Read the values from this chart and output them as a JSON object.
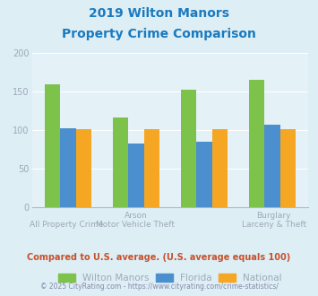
{
  "title_line1": "2019 Wilton Manors",
  "title_line2": "Property Crime Comparison",
  "title_color": "#1a7abf",
  "wilton_manors": [
    160,
    116,
    153,
    166
  ],
  "florida": [
    102,
    83,
    85,
    107
  ],
  "national": [
    101,
    101,
    101,
    101
  ],
  "wilton_color": "#7dc24b",
  "florida_color": "#4c8fce",
  "national_color": "#f5a623",
  "bg_color": "#ddeef5",
  "plot_bg": "#e4f1f7",
  "ylim": [
    0,
    200
  ],
  "yticks": [
    0,
    50,
    100,
    150,
    200
  ],
  "top_labels": [
    "",
    "Arson",
    "",
    "Burglary"
  ],
  "bot_labels": [
    "All Property Crime",
    "Motor Vehicle Theft",
    "",
    "Larceny & Theft"
  ],
  "tick_color": "#a0a8b8",
  "subtitle": "Compared to U.S. average. (U.S. average equals 100)",
  "subtitle_color": "#c8502a",
  "footer": "© 2025 CityRating.com - https://www.cityrating.com/crime-statistics/",
  "footer_color": "#8888aa",
  "legend_labels": [
    "Wilton Manors",
    "Florida",
    "National"
  ]
}
